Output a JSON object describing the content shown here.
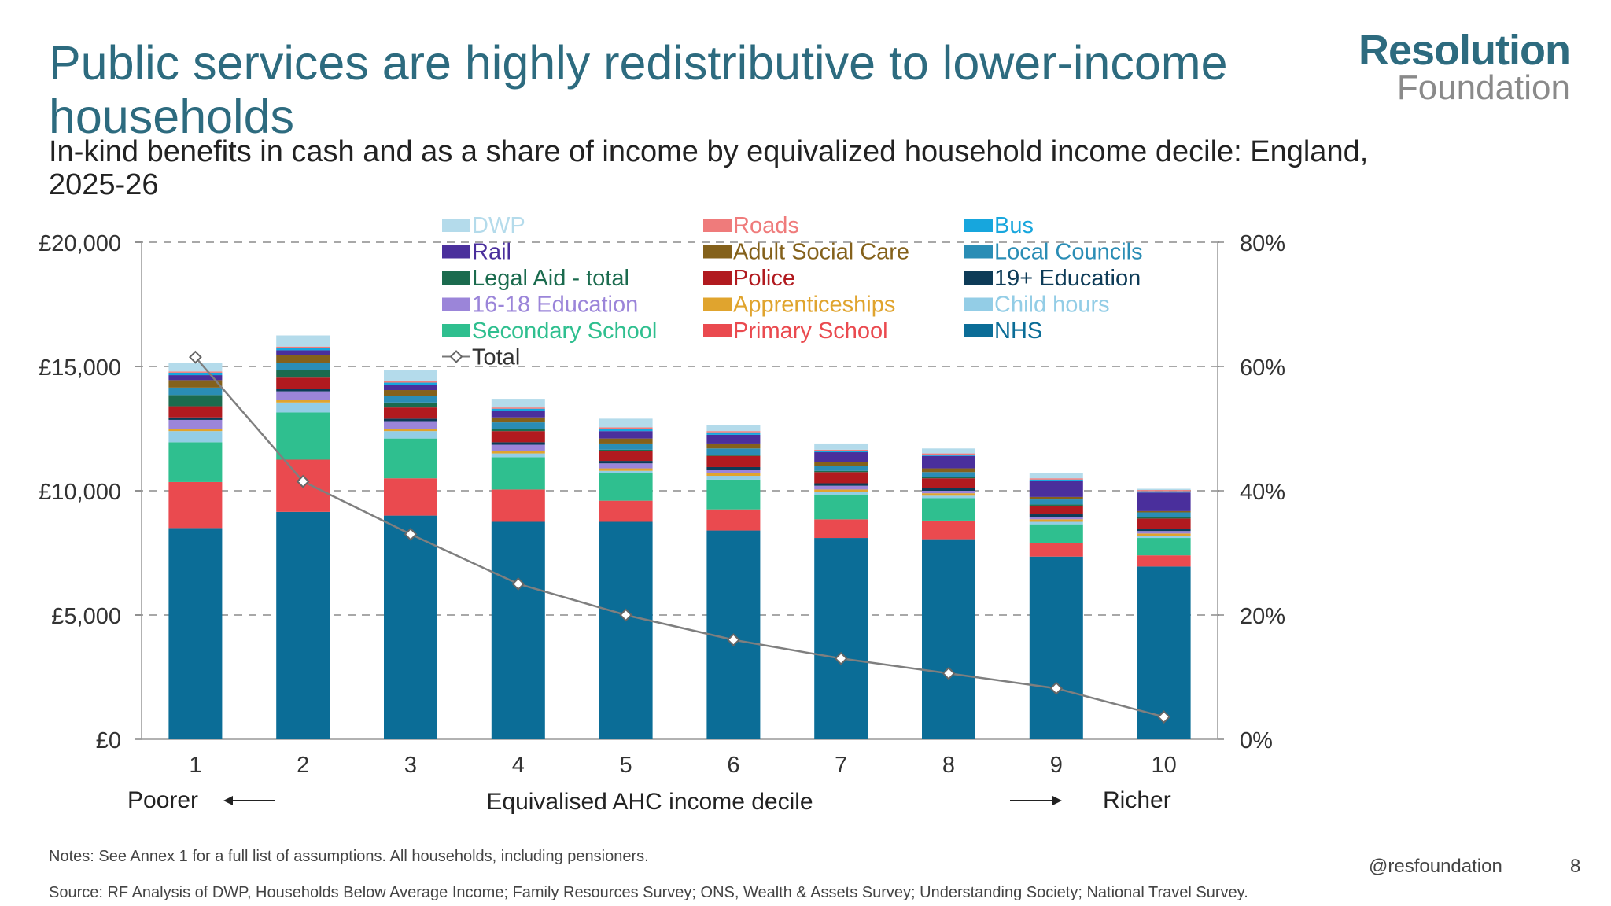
{
  "title": "Public services are highly redistributive to lower-income households",
  "subtitle": "In-kind benefits in cash and as a share of income by equivalized household income decile: England, 2025-26",
  "logo": {
    "line1": "Resolution",
    "line2": "Foundation"
  },
  "notes": "Notes: See Annex 1 for a full list of assumptions. All households, including pensioners.",
  "source": "Source: RF Analysis of DWP, Households Below Average Income; Family Resources Survey; ONS, Wealth & Assets Survey; Understanding Society; National Travel Survey.",
  "handle": "@resfoundation",
  "page_number": "8",
  "chart_data": {
    "type": "bar",
    "stacked": true,
    "title": "In-kind benefits in cash and as a share of income by equivalized household income decile: England, 2025-26",
    "xlabel": "Equivalised AHC income decile",
    "x_left_annotation": "Poorer",
    "x_right_annotation": "Richer",
    "categories": [
      "1",
      "2",
      "3",
      "4",
      "5",
      "6",
      "7",
      "8",
      "9",
      "10"
    ],
    "y_left": {
      "ylim": [
        0,
        20000
      ],
      "ticks": [
        0,
        5000,
        10000,
        15000,
        20000
      ],
      "tick_labels": [
        "£0",
        "£5,000",
        "£10,000",
        "£15,000",
        "£20,000"
      ]
    },
    "y_right": {
      "ylim": [
        0,
        80
      ],
      "ticks": [
        0,
        20,
        40,
        60,
        80
      ],
      "tick_labels": [
        "0%",
        "20%",
        "40%",
        "60%",
        "80%"
      ]
    },
    "grid": "dashed horizontal",
    "legend_order": [
      "DWP",
      "Roads",
      "Bus",
      "Rail",
      "Adult Social Care",
      "Local Councils",
      "Legal Aid - total",
      "Police",
      "19+ Education",
      "16-18 Education",
      "Apprenticeships",
      "Child hours",
      "Secondary School",
      "Primary School",
      "NHS",
      "Total"
    ],
    "series": [
      {
        "name": "NHS",
        "color": "#0b6d97",
        "values": [
          8500,
          9150,
          9000,
          8750,
          8750,
          8400,
          8100,
          8050,
          7350,
          6950
        ]
      },
      {
        "name": "Primary School",
        "color": "#ea4a4f",
        "values": [
          1850,
          2100,
          1500,
          1300,
          850,
          850,
          750,
          750,
          550,
          450
        ]
      },
      {
        "name": "Secondary School",
        "color": "#2fbf8f",
        "values": [
          1600,
          1900,
          1600,
          1300,
          1100,
          1200,
          1000,
          900,
          750,
          700
        ]
      },
      {
        "name": "Child hours",
        "color": "#93cde6",
        "values": [
          450,
          400,
          300,
          150,
          100,
          150,
          100,
          100,
          100,
          80
        ]
      },
      {
        "name": "Apprenticeships",
        "color": "#e0a42e",
        "values": [
          100,
          100,
          100,
          100,
          100,
          100,
          100,
          100,
          100,
          100
        ]
      },
      {
        "name": "16-18 Education",
        "color": "#9b85d9",
        "values": [
          350,
          350,
          300,
          250,
          200,
          150,
          150,
          100,
          100,
          100
        ]
      },
      {
        "name": "19+ Education",
        "color": "#0d3b57",
        "values": [
          100,
          100,
          100,
          100,
          100,
          100,
          100,
          100,
          100,
          100
        ]
      },
      {
        "name": "Police",
        "color": "#b11a1f",
        "values": [
          450,
          450,
          450,
          450,
          400,
          450,
          450,
          400,
          350,
          400
        ]
      },
      {
        "name": "Legal Aid - total",
        "color": "#1b6b4e",
        "values": [
          450,
          300,
          200,
          100,
          50,
          50,
          50,
          50,
          50,
          50
        ]
      },
      {
        "name": "Local Councils",
        "color": "#2a8db5",
        "values": [
          300,
          300,
          250,
          250,
          250,
          250,
          200,
          200,
          200,
          200
        ]
      },
      {
        "name": "Adult Social Care",
        "color": "#84611b",
        "values": [
          300,
          300,
          250,
          200,
          200,
          200,
          150,
          150,
          100,
          50
        ]
      },
      {
        "name": "Rail",
        "color": "#4a2f9c",
        "values": [
          200,
          200,
          200,
          250,
          300,
          350,
          400,
          500,
          650,
          750
        ]
      },
      {
        "name": "Bus",
        "color": "#17a6dd",
        "values": [
          100,
          100,
          100,
          100,
          100,
          100,
          50,
          50,
          50,
          50
        ]
      },
      {
        "name": "Roads",
        "color": "#ef7b7b",
        "values": [
          50,
          50,
          50,
          50,
          50,
          50,
          50,
          50,
          50,
          50
        ]
      },
      {
        "name": "DWP",
        "color": "#b4dbeb",
        "values": [
          350,
          450,
          450,
          350,
          350,
          250,
          250,
          200,
          200,
          50
        ]
      }
    ],
    "line_series": {
      "name": "Total",
      "axis": "right",
      "color": "#7f7f7f",
      "unit": "%",
      "values": [
        61.5,
        41.5,
        33,
        25,
        20,
        16,
        13,
        10.6,
        8.2,
        3.6
      ]
    }
  }
}
